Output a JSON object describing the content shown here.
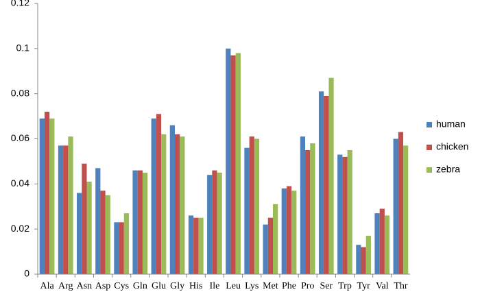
{
  "chart_data": {
    "type": "bar",
    "categories": [
      "Ala",
      "Arg",
      "Asn",
      "Asp",
      "Cys",
      "Gln",
      "Glu",
      "Gly",
      "His",
      "Ile",
      "Leu",
      "Lys",
      "Met",
      "Phe",
      "Pro",
      "Ser",
      "Trp",
      "Tyr",
      "Val",
      "Thr"
    ],
    "series": [
      {
        "name": "human",
        "color": "#4f81bd",
        "values": [
          0.069,
          0.057,
          0.036,
          0.047,
          0.023,
          0.046,
          0.069,
          0.066,
          0.026,
          0.044,
          0.1,
          0.056,
          0.022,
          0.038,
          0.061,
          0.081,
          0.053,
          0.013,
          0.027,
          0.06
        ]
      },
      {
        "name": "chicken",
        "color": "#c0504d",
        "values": [
          0.072,
          0.057,
          0.049,
          0.037,
          0.023,
          0.046,
          0.071,
          0.062,
          0.025,
          0.046,
          0.097,
          0.061,
          0.025,
          0.039,
          0.055,
          0.079,
          0.052,
          0.012,
          0.029,
          0.063
        ]
      },
      {
        "name": "zebra",
        "color": "#9bbb59",
        "values": [
          0.069,
          0.061,
          0.041,
          0.035,
          0.027,
          0.045,
          0.062,
          0.061,
          0.025,
          0.045,
          0.098,
          0.06,
          0.031,
          0.037,
          0.058,
          0.087,
          0.055,
          0.017,
          0.026,
          0.057
        ]
      }
    ],
    "ylim": [
      0,
      0.12
    ],
    "yticks": [
      0,
      0.02,
      0.04,
      0.06,
      0.08,
      0.1,
      0.12
    ],
    "grid": false,
    "legend": "right"
  }
}
